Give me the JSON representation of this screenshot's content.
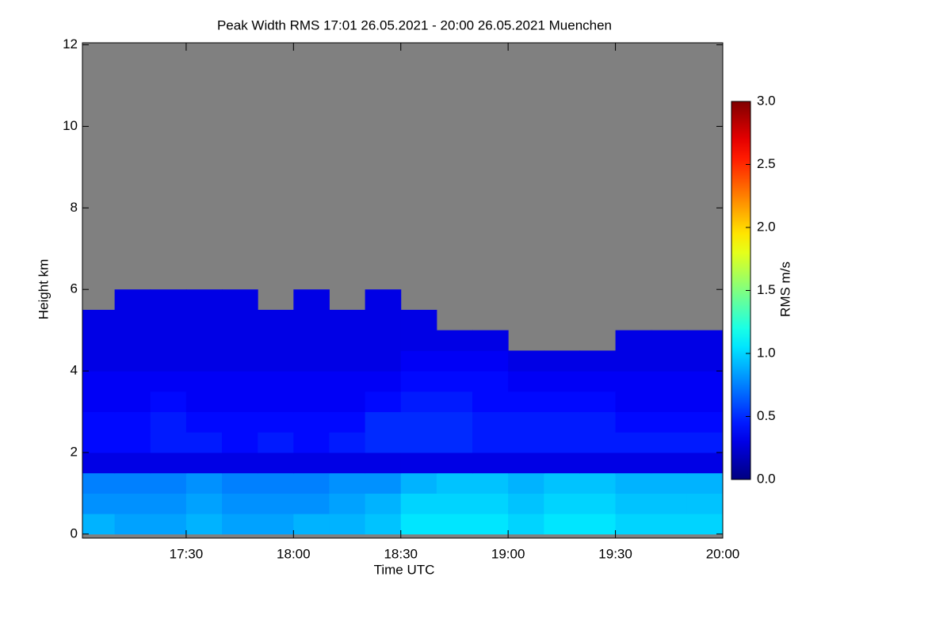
{
  "chart_data": {
    "type": "heatmap",
    "title": "Peak Width RMS   17:01 26.05.2021 - 20:00 26.05.2021 Muenchen",
    "x_label": "Time UTC",
    "y_label": "Height km",
    "colorbar_label": "RMS m/s",
    "colorscale": "jet",
    "nodata_color": "#808080",
    "xlim": [
      "17:01",
      "20:00"
    ],
    "xticks": [
      "17:30",
      "18:00",
      "18:30",
      "19:00",
      "19:30",
      "20:00"
    ],
    "ylim": [
      -0.1,
      12.05
    ],
    "yticks": [
      0,
      2,
      4,
      6,
      8,
      10,
      12
    ],
    "clim": [
      0,
      3
    ],
    "cticks": [
      {
        "value": 0,
        "label": "0.0"
      },
      0.5,
      {
        "value": 1,
        "label": "1.0"
      },
      1.5,
      {
        "value": 2,
        "label": "2.0"
      },
      2.5,
      {
        "value": 3,
        "label": "3.0"
      }
    ],
    "x_bins": [
      "17:01",
      "17:10",
      "17:20",
      "17:30",
      "17:40",
      "17:50",
      "18:00",
      "18:10",
      "18:20",
      "18:30",
      "18:40",
      "18:50",
      "19:00",
      "19:10",
      "19:20",
      "19:30",
      "19:40",
      "19:50",
      "20:00"
    ],
    "y_bins": [
      0,
      0.5,
      1,
      1.5,
      2,
      2.5,
      3,
      3.5,
      4,
      4.5,
      5,
      5.5,
      6
    ],
    "z": [
      [
        0.9,
        0.85,
        0.85,
        0.9,
        0.85,
        0.85,
        0.9,
        0.9,
        0.95,
        1.05,
        1.05,
        1.05,
        1.0,
        1.05,
        1.05,
        1.0,
        1.0,
        1.0
      ],
      [
        0.8,
        0.8,
        0.8,
        0.85,
        0.8,
        0.8,
        0.8,
        0.85,
        0.9,
        1.0,
        1.0,
        1.0,
        0.95,
        1.0,
        1.0,
        0.95,
        0.95,
        0.95
      ],
      [
        0.75,
        0.75,
        0.75,
        0.8,
        0.75,
        0.75,
        0.75,
        0.8,
        0.8,
        0.9,
        0.95,
        0.95,
        0.9,
        0.95,
        0.95,
        0.9,
        0.9,
        0.9
      ],
      [
        0.3,
        0.3,
        0.3,
        0.3,
        0.3,
        0.3,
        0.3,
        0.3,
        0.3,
        0.3,
        0.3,
        0.3,
        0.3,
        0.3,
        0.3,
        0.3,
        0.3,
        0.3
      ],
      [
        0.4,
        0.4,
        0.45,
        0.45,
        0.4,
        0.45,
        0.4,
        0.45,
        0.5,
        0.5,
        0.5,
        0.45,
        0.45,
        0.45,
        0.45,
        0.45,
        0.45,
        0.45
      ],
      [
        0.4,
        0.4,
        0.45,
        0.4,
        0.4,
        0.4,
        0.4,
        0.4,
        0.5,
        0.5,
        0.5,
        0.45,
        0.45,
        0.45,
        0.45,
        0.4,
        0.4,
        0.4
      ],
      [
        0.35,
        0.35,
        0.4,
        0.35,
        0.35,
        0.35,
        0.35,
        0.35,
        0.4,
        0.45,
        0.45,
        0.4,
        0.4,
        0.4,
        0.4,
        0.35,
        0.35,
        0.35
      ],
      [
        0.35,
        0.35,
        0.35,
        0.35,
        0.35,
        0.35,
        0.35,
        0.35,
        0.35,
        0.4,
        0.4,
        0.4,
        0.35,
        0.35,
        0.35,
        0.35,
        0.35,
        0.35
      ],
      [
        0.3,
        0.3,
        0.3,
        0.3,
        0.3,
        0.3,
        0.3,
        0.3,
        0.3,
        0.35,
        0.35,
        0.35,
        0.3,
        0.3,
        0.3,
        0.3,
        0.3,
        0.3
      ],
      [
        0.3,
        0.3,
        0.3,
        0.3,
        0.3,
        0.3,
        0.3,
        0.3,
        0.3,
        0.3,
        0.3,
        0.3,
        null,
        null,
        null,
        0.3,
        0.3,
        0.3
      ],
      [
        0.3,
        0.3,
        0.3,
        0.3,
        0.3,
        0.3,
        0.3,
        0.3,
        0.3,
        0.3,
        null,
        null,
        null,
        null,
        null,
        null,
        null,
        null
      ],
      [
        null,
        0.3,
        0.3,
        0.3,
        0.3,
        null,
        0.3,
        null,
        0.3,
        null,
        null,
        null,
        null,
        null,
        null,
        null,
        null,
        null
      ]
    ]
  }
}
